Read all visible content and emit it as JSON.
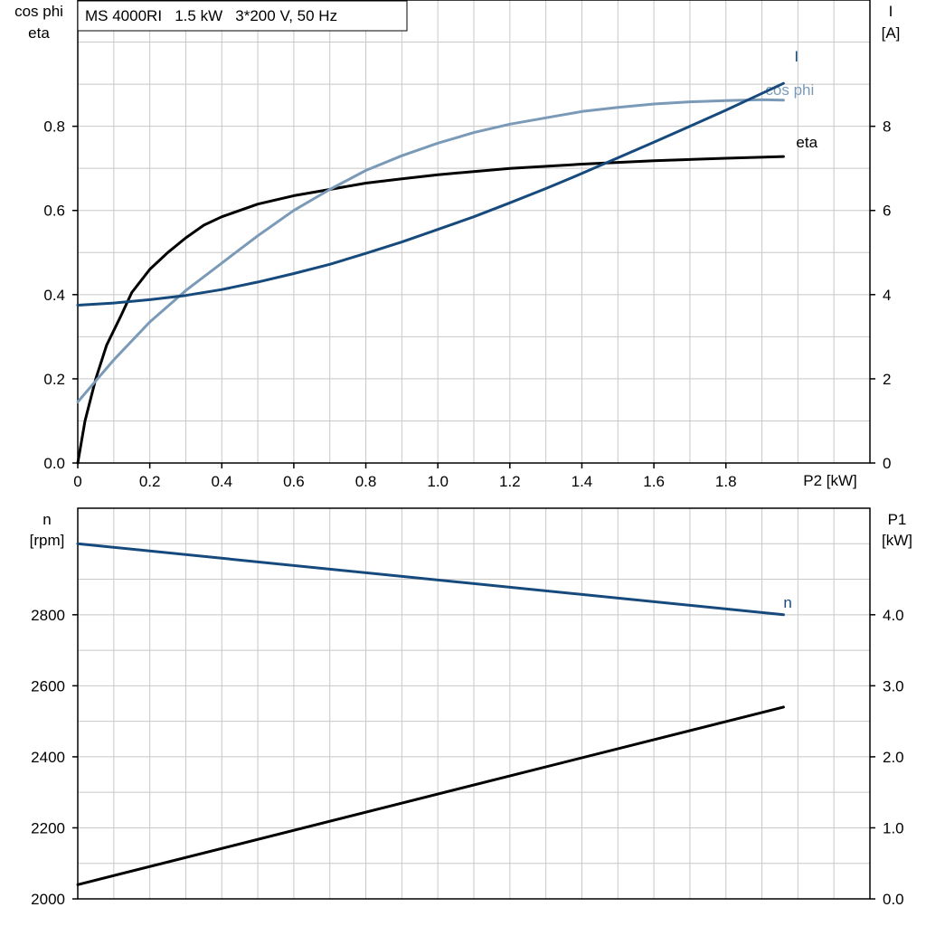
{
  "chart_title": "MS 4000RI   1.5 kW   3*200 V, 50 Hz",
  "colors": {
    "eta": "#000000",
    "cos_phi": "#7a9ab8",
    "I": "#174a7c",
    "n": "#174a7c",
    "P1": "#000000",
    "grid": "#c8c8c8"
  },
  "chart_data": [
    {
      "type": "line",
      "name": "top",
      "xlabel": "P2 [kW]",
      "xlim": [
        0,
        2.2
      ],
      "x_ticks": [
        "0",
        "0.2",
        "0.4",
        "0.6",
        "0.8",
        "1.0",
        "1.2",
        "1.4",
        "1.6",
        "1.8"
      ],
      "ylabel_left": [
        "cos phi",
        "eta"
      ],
      "ylim_left": [
        0,
        1.1
      ],
      "y_ticks_left": [
        "0.0",
        "0.2",
        "0.4",
        "0.6",
        "0.8"
      ],
      "ylabel_right": [
        "I",
        "[A]"
      ],
      "ylim_right": [
        0,
        11
      ],
      "y_ticks_right": [
        "0",
        "2",
        "4",
        "6",
        "8"
      ],
      "grid": true,
      "series": [
        {
          "name": "eta",
          "label": "eta",
          "axis": "left",
          "points": [
            [
              0,
              0
            ],
            [
              0.02,
              0.1
            ],
            [
              0.05,
              0.2
            ],
            [
              0.08,
              0.28
            ],
            [
              0.12,
              0.35
            ],
            [
              0.15,
              0.405
            ],
            [
              0.2,
              0.46
            ],
            [
              0.25,
              0.5
            ],
            [
              0.3,
              0.535
            ],
            [
              0.35,
              0.565
            ],
            [
              0.4,
              0.585
            ],
            [
              0.5,
              0.615
            ],
            [
              0.6,
              0.635
            ],
            [
              0.7,
              0.65
            ],
            [
              0.8,
              0.665
            ],
            [
              0.9,
              0.675
            ],
            [
              1.0,
              0.685
            ],
            [
              1.2,
              0.7
            ],
            [
              1.4,
              0.71
            ],
            [
              1.6,
              0.718
            ],
            [
              1.8,
              0.724
            ],
            [
              1.96,
              0.728
            ]
          ]
        },
        {
          "name": "cos phi",
          "label": "cos phi",
          "axis": "left",
          "points": [
            [
              0,
              0.145
            ],
            [
              0.05,
              0.195
            ],
            [
              0.1,
              0.245
            ],
            [
              0.2,
              0.335
            ],
            [
              0.3,
              0.41
            ],
            [
              0.4,
              0.475
            ],
            [
              0.5,
              0.54
            ],
            [
              0.6,
              0.6
            ],
            [
              0.7,
              0.65
            ],
            [
              0.8,
              0.695
            ],
            [
              0.9,
              0.73
            ],
            [
              1.0,
              0.76
            ],
            [
              1.1,
              0.785
            ],
            [
              1.2,
              0.805
            ],
            [
              1.3,
              0.82
            ],
            [
              1.4,
              0.835
            ],
            [
              1.5,
              0.845
            ],
            [
              1.6,
              0.853
            ],
            [
              1.7,
              0.858
            ],
            [
              1.8,
              0.861
            ],
            [
              1.9,
              0.863
            ],
            [
              1.96,
              0.862
            ]
          ]
        },
        {
          "name": "I",
          "label": "I",
          "axis": "right",
          "points": [
            [
              0,
              3.75
            ],
            [
              0.1,
              3.8
            ],
            [
              0.2,
              3.88
            ],
            [
              0.3,
              3.98
            ],
            [
              0.4,
              4.12
            ],
            [
              0.5,
              4.3
            ],
            [
              0.6,
              4.5
            ],
            [
              0.7,
              4.72
            ],
            [
              0.8,
              4.98
            ],
            [
              0.9,
              5.25
            ],
            [
              1.0,
              5.55
            ],
            [
              1.1,
              5.85
            ],
            [
              1.2,
              6.18
            ],
            [
              1.3,
              6.52
            ],
            [
              1.4,
              6.88
            ],
            [
              1.5,
              7.25
            ],
            [
              1.6,
              7.62
            ],
            [
              1.7,
              8.0
            ],
            [
              1.8,
              8.38
            ],
            [
              1.9,
              8.78
            ],
            [
              1.96,
              9.02
            ]
          ]
        }
      ]
    },
    {
      "type": "line",
      "name": "bottom",
      "xlim": [
        0,
        2.2
      ],
      "ylabel_left": [
        "n",
        "[rpm]"
      ],
      "ylim_left": [
        2000,
        3100
      ],
      "y_ticks_left": [
        "2000",
        "2200",
        "2400",
        "2600",
        "2800"
      ],
      "ylabel_right": [
        "P1",
        "[kW]"
      ],
      "ylim_right": [
        0,
        5.5
      ],
      "y_ticks_right": [
        "0.0",
        "1.0",
        "2.0",
        "3.0",
        "4.0"
      ],
      "grid": true,
      "series": [
        {
          "name": "n",
          "label": "n",
          "axis": "left",
          "points": [
            [
              0,
              3000
            ],
            [
              1.96,
              2800
            ]
          ]
        },
        {
          "name": "P1",
          "label": "",
          "axis": "right",
          "points": [
            [
              0,
              0.2
            ],
            [
              1.96,
              2.7
            ]
          ]
        }
      ]
    }
  ]
}
